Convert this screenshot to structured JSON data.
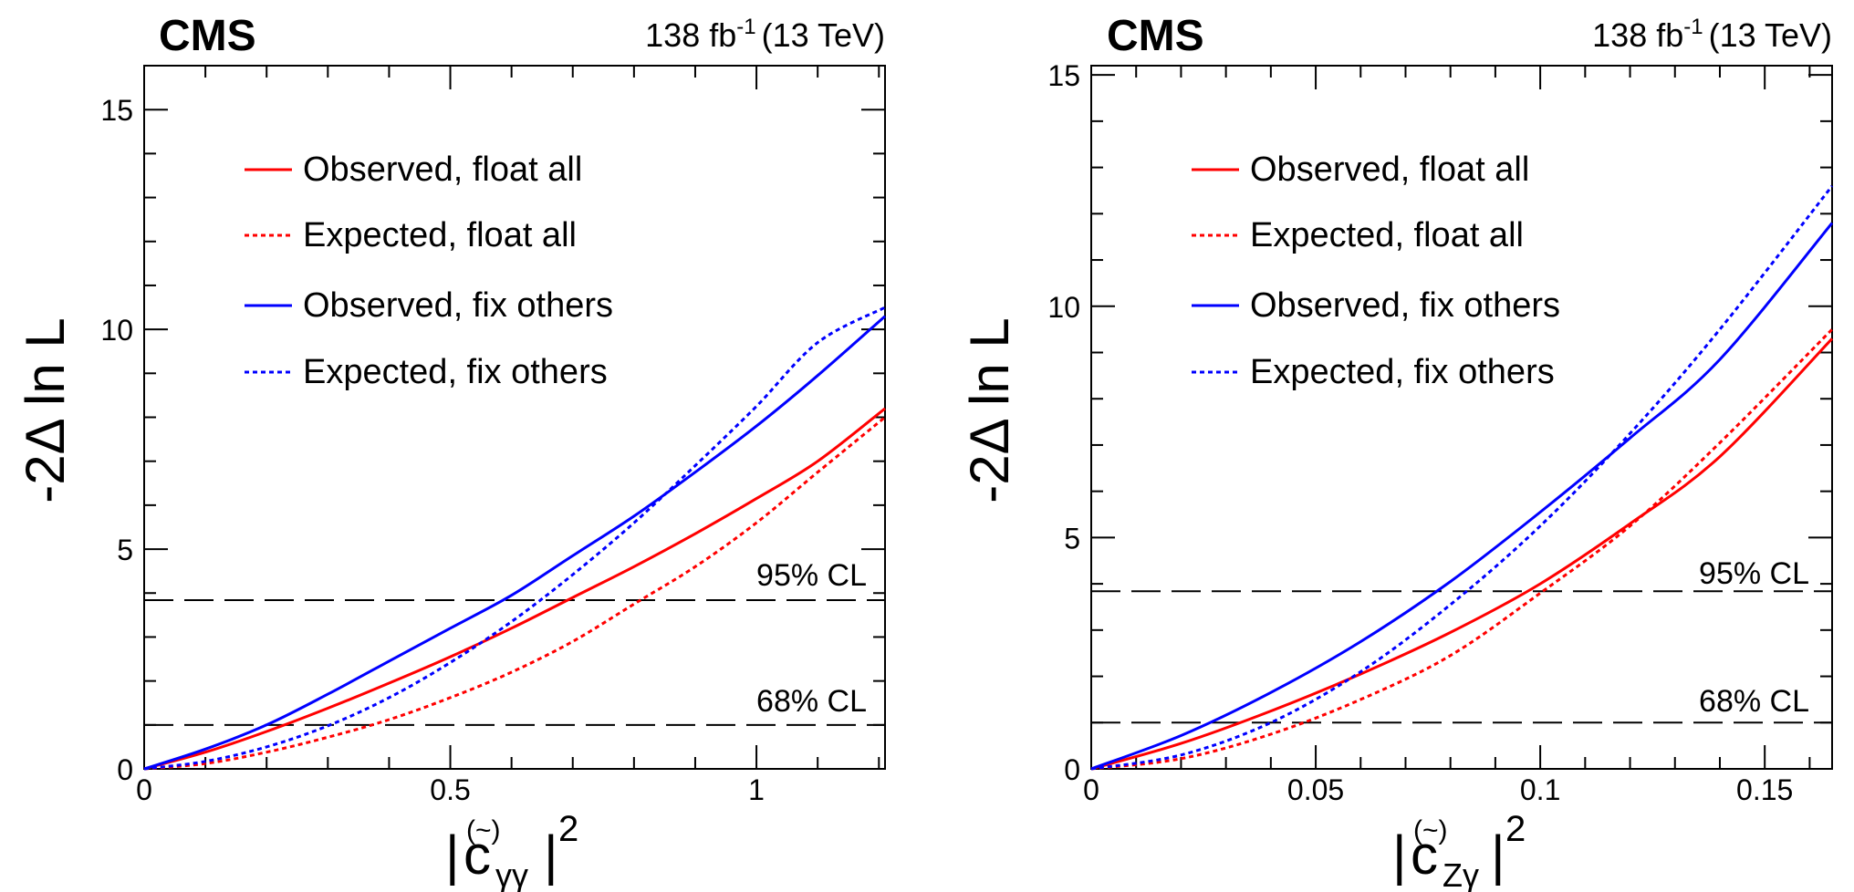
{
  "panels": [
    {
      "experiment": "CMS",
      "lumi": "138 fb",
      "lumi_exp": "-1",
      "energy": "(13 TeV)",
      "ylabel": "-2Δ ln L",
      "xlabel_prefix": "|",
      "xlabel_symbol": "c",
      "xlabel_accent": "(~)",
      "xlabel_sub": "γγ",
      "xlabel_suffix": "|",
      "xlabel_exp": "2",
      "cl95_label": "95% CL",
      "cl68_label": "68% CL",
      "colors": {
        "red": "#ff0000",
        "blue": "#0000ff",
        "dashed": "#000000"
      }
    },
    {
      "experiment": "CMS",
      "lumi": "138 fb",
      "lumi_exp": "-1",
      "energy": "(13 TeV)",
      "ylabel": "-2Δ ln L",
      "xlabel_prefix": "|",
      "xlabel_symbol": "c",
      "xlabel_accent": "(~)",
      "xlabel_sub": "Zγ",
      "xlabel_suffix": "|",
      "xlabel_exp": "2",
      "cl95_label": "95% CL",
      "cl68_label": "68% CL",
      "colors": {
        "red": "#ff0000",
        "blue": "#0000ff",
        "dashed": "#000000"
      }
    }
  ],
  "chart_data": [
    {
      "type": "line",
      "xlim": [
        0,
        1.21
      ],
      "ylim": [
        0,
        16
      ],
      "xticks": [
        0,
        0.5,
        1
      ],
      "xtick_labels": [
        "0",
        "0.5",
        "1"
      ],
      "yticks": [
        0,
        5,
        10,
        15
      ],
      "ytick_labels": [
        "0",
        "5",
        "10",
        "15"
      ],
      "grid": false,
      "legend_position": "top-left",
      "cl_lines": [
        {
          "name": "95% CL",
          "y": 3.84
        },
        {
          "name": "68% CL",
          "y": 1.0
        }
      ],
      "series": [
        {
          "name": "Observed, float all",
          "color": "#ff0000",
          "style": "solid",
          "x": [
            0,
            0.1,
            0.2,
            0.3,
            0.4,
            0.5,
            0.6,
            0.7,
            0.8,
            0.9,
            1.0,
            1.1,
            1.21
          ],
          "y": [
            0,
            0.38,
            0.85,
            1.38,
            1.95,
            2.55,
            3.2,
            3.9,
            4.6,
            5.35,
            6.15,
            7.0,
            8.2
          ]
        },
        {
          "name": "Expected, float all",
          "color": "#ff0000",
          "style": "dotted",
          "x": [
            0,
            0.1,
            0.2,
            0.3,
            0.4,
            0.5,
            0.6,
            0.7,
            0.8,
            0.9,
            1.0,
            1.1,
            1.21
          ],
          "y": [
            0,
            0.12,
            0.38,
            0.72,
            1.12,
            1.62,
            2.2,
            2.9,
            3.75,
            4.6,
            5.6,
            6.75,
            8.0
          ]
        },
        {
          "name": "Observed, fix others",
          "color": "#0000ff",
          "style": "solid",
          "x": [
            0,
            0.1,
            0.2,
            0.3,
            0.4,
            0.5,
            0.6,
            0.7,
            0.8,
            0.9,
            1.0,
            1.1,
            1.21
          ],
          "y": [
            0,
            0.45,
            1.0,
            1.7,
            2.45,
            3.2,
            3.95,
            4.85,
            5.75,
            6.75,
            7.8,
            8.95,
            10.3
          ]
        },
        {
          "name": "Expected, fix others",
          "color": "#0000ff",
          "style": "dotted",
          "x": [
            0,
            0.1,
            0.2,
            0.3,
            0.4,
            0.5,
            0.6,
            0.7,
            0.8,
            0.9,
            1.0,
            1.1,
            1.21
          ],
          "y": [
            0,
            0.17,
            0.5,
            0.98,
            1.62,
            2.42,
            3.35,
            4.42,
            5.6,
            6.9,
            8.25,
            9.7,
            10.5
          ]
        }
      ]
    },
    {
      "type": "line",
      "xlim": [
        0,
        0.165
      ],
      "ylim": [
        0,
        15.2
      ],
      "xticks": [
        0,
        0.05,
        0.1,
        0.15
      ],
      "xtick_labels": [
        "0",
        "0.05",
        "0.1",
        "0.15"
      ],
      "yticks": [
        0,
        5,
        10,
        15
      ],
      "ytick_labels": [
        "0",
        "5",
        "10",
        "15"
      ],
      "grid": false,
      "legend_position": "top-left",
      "cl_lines": [
        {
          "name": "95% CL",
          "y": 3.84
        },
        {
          "name": "68% CL",
          "y": 1.0
        }
      ],
      "series": [
        {
          "name": "Observed, float all",
          "color": "#ff0000",
          "style": "solid",
          "x": [
            0,
            0.02,
            0.04,
            0.06,
            0.08,
            0.1,
            0.12,
            0.14,
            0.165
          ],
          "y": [
            0,
            0.55,
            1.25,
            2.05,
            2.95,
            4.0,
            5.3,
            6.75,
            9.3
          ]
        },
        {
          "name": "Expected, float all",
          "color": "#ff0000",
          "style": "dotted",
          "x": [
            0,
            0.02,
            0.04,
            0.06,
            0.08,
            0.1,
            0.12,
            0.14,
            0.165
          ],
          "y": [
            0,
            0.22,
            0.75,
            1.5,
            2.45,
            3.8,
            5.25,
            7.05,
            9.5
          ]
        },
        {
          "name": "Observed, fix others",
          "color": "#0000ff",
          "style": "solid",
          "x": [
            0,
            0.02,
            0.04,
            0.06,
            0.08,
            0.1,
            0.12,
            0.14,
            0.165
          ],
          "y": [
            0,
            0.72,
            1.65,
            2.75,
            4.05,
            5.55,
            7.15,
            8.85,
            11.8
          ]
        },
        {
          "name": "Expected, fix others",
          "color": "#0000ff",
          "style": "dotted",
          "x": [
            0,
            0.02,
            0.04,
            0.06,
            0.08,
            0.1,
            0.12,
            0.14,
            0.165
          ],
          "y": [
            0,
            0.3,
            1.0,
            2.1,
            3.55,
            5.25,
            7.25,
            9.5,
            12.6
          ]
        }
      ]
    }
  ]
}
